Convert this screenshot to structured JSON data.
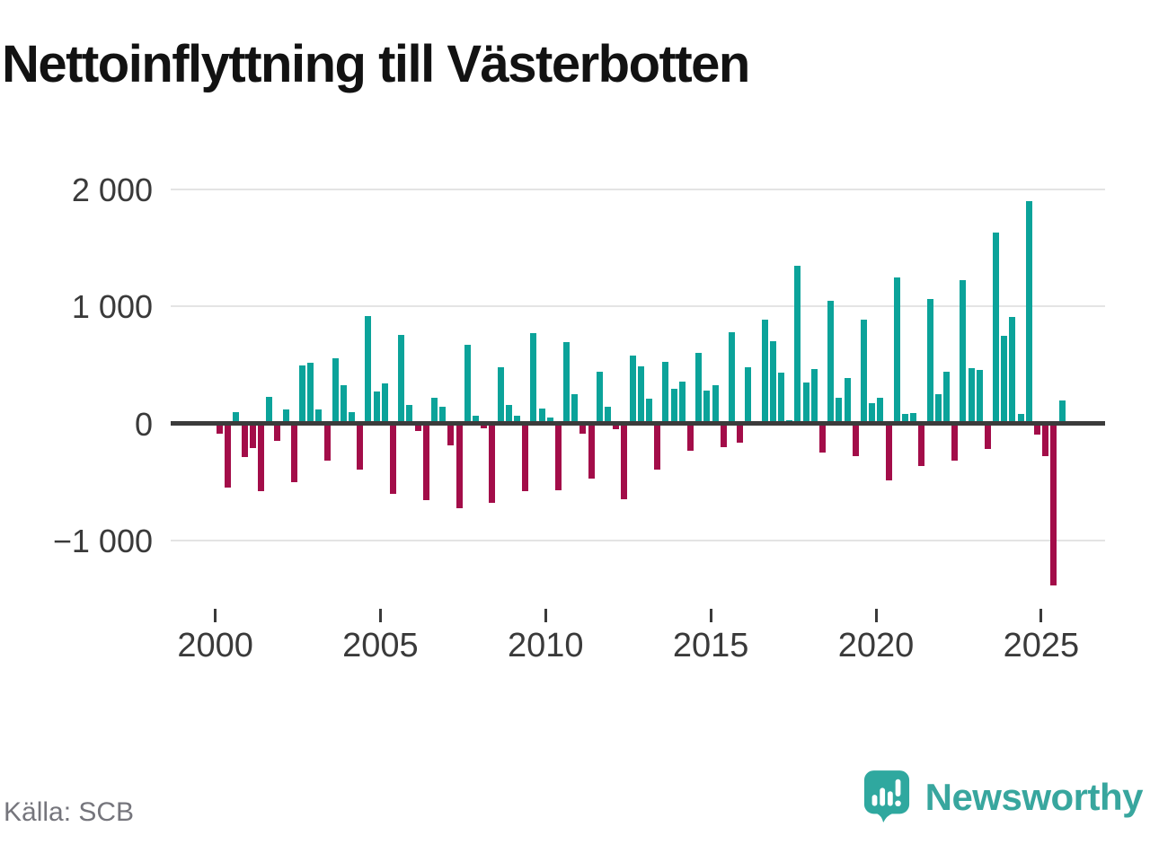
{
  "title": "Nettoinflyttning till Västerbotten",
  "source": "Källa: SCB",
  "branding": {
    "logo_text": "Newsworthy",
    "logo_icon": "newsworthy-bar-chart-bubble-icon"
  },
  "colors": {
    "positive": "#0ba39a",
    "negative": "#a30d49",
    "zero_axis": "#3b3b3b",
    "gridline": "#e4e4e4",
    "axis_text": "#3a3a3a",
    "muted_text": "#75757c",
    "brand_teal": "#38a69e",
    "title_text": "#121212"
  },
  "chart_data": {
    "type": "bar",
    "title": "Nettoinflyttning till Västerbotten",
    "frequency": "quarterly",
    "start_year": 2000,
    "start_quarter": 1,
    "end_year": 2025,
    "end_quarter": 3,
    "xlabel": "",
    "ylabel": "",
    "ylim": [
      -1500,
      2150
    ],
    "grid": true,
    "y_ticks": [
      2000,
      1000,
      0,
      -1000
    ],
    "y_tick_labels": [
      "2 000",
      "1 000",
      "0",
      "−1 000"
    ],
    "x_tick_years": [
      2000,
      2005,
      2010,
      2015,
      2020,
      2025
    ],
    "x_tick_labels": [
      "2000",
      "2005",
      "2010",
      "2015",
      "2020",
      "2025"
    ],
    "series": [
      {
        "name": "Nettoinflyttning",
        "values": [
          -85,
          -550,
          95,
          -290,
          -210,
          -580,
          230,
          -145,
          120,
          -500,
          500,
          520,
          120,
          -315,
          555,
          325,
          95,
          -395,
          915,
          275,
          345,
          -600,
          760,
          160,
          -60,
          -655,
          220,
          140,
          -185,
          -725,
          675,
          65,
          -40,
          -675,
          485,
          160,
          70,
          -580,
          775,
          130,
          50,
          -570,
          695,
          250,
          -85,
          -470,
          440,
          145,
          -50,
          -650,
          580,
          490,
          210,
          -395,
          530,
          300,
          360,
          -230,
          605,
          280,
          325,
          -200,
          780,
          -165,
          480,
          10,
          885,
          705,
          435,
          30,
          1350,
          350,
          465,
          -245,
          1050,
          220,
          390,
          -280,
          890,
          175,
          220,
          -485,
          1250,
          80,
          90,
          -360,
          1065,
          250,
          440,
          -315,
          1225,
          475,
          460,
          -220,
          1635,
          750,
          910,
          80,
          1900,
          -95,
          -280,
          -1380,
          200
        ]
      }
    ]
  }
}
